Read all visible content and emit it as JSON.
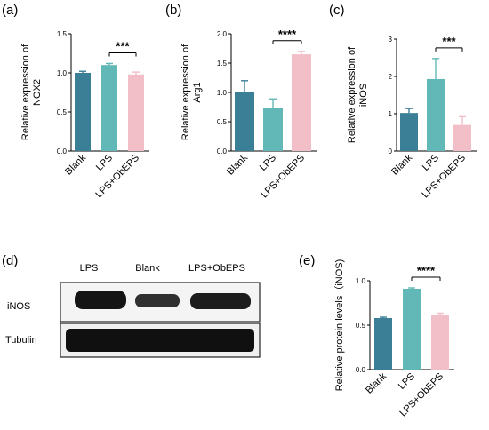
{
  "panels": {
    "a": "(a)",
    "b": "(b)",
    "c": "(c)",
    "d": "(d)",
    "e": "(e)"
  },
  "western_blot": {
    "lanes": [
      "LPS",
      "Blank",
      "LPS+ObEPS"
    ],
    "rows": [
      "iNOS",
      "Tubulin"
    ]
  },
  "colors": {
    "blank": "#3a7f96",
    "lps": "#62b8b6",
    "lps_obeps": "#f2bfc8"
  },
  "chart_data": [
    {
      "type": "bar",
      "panel": "(a)",
      "categories": [
        "Blank",
        "LPS",
        "LPS+ObEPS"
      ],
      "values": [
        1.0,
        1.1,
        0.98
      ],
      "errors": [
        0.02,
        0.02,
        0.03
      ],
      "ylabel": "Relative expression of\nNOX2",
      "ylim": [
        0,
        1.5
      ],
      "yticks": [
        "0.0",
        "0.5",
        "1.0",
        "1.5"
      ],
      "significance": {
        "from": 1,
        "to": 2,
        "label": "***"
      }
    },
    {
      "type": "bar",
      "panel": "(b)",
      "categories": [
        "Blank",
        "LPS",
        "LPS+ObEPS"
      ],
      "values": [
        1.0,
        0.74,
        1.65
      ],
      "errors": [
        0.2,
        0.15,
        0.05
      ],
      "ylabel": "Relative expression of\nArg1",
      "ylim": [
        0,
        2.0
      ],
      "yticks": [
        "0.0",
        "0.5",
        "1.0",
        "1.5",
        "2.0"
      ],
      "significance": {
        "from": 1,
        "to": 2,
        "label": "****"
      }
    },
    {
      "type": "bar",
      "panel": "(c)",
      "categories": [
        "Blank",
        "LPS",
        "LPS+ObEPS"
      ],
      "values": [
        1.02,
        1.93,
        0.7
      ],
      "errors": [
        0.12,
        0.55,
        0.22
      ],
      "ylabel": "Relative expression of\niNOS",
      "ylim": [
        0,
        3
      ],
      "yticks": [
        "0",
        "1",
        "2",
        "3"
      ],
      "significance": {
        "from": 1,
        "to": 2,
        "label": "***"
      }
    },
    {
      "type": "bar",
      "panel": "(e)",
      "categories": [
        "Blank",
        "LPS",
        "LPS+ObEPS"
      ],
      "values": [
        0.58,
        0.91,
        0.62
      ],
      "errors": [
        0.01,
        0.01,
        0.015
      ],
      "ylabel": "Relative protein levels（iNOS)",
      "ylim": [
        0,
        1.0
      ],
      "yticks": [
        "0.0",
        "0.5",
        "1.0"
      ],
      "significance": {
        "from": 1,
        "to": 2,
        "label": "****"
      }
    }
  ]
}
